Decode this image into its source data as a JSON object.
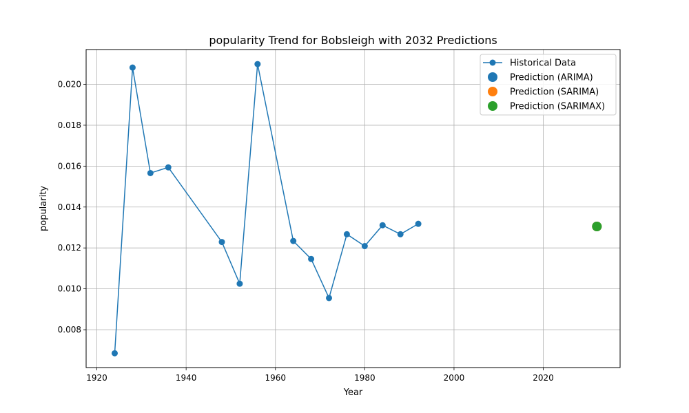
{
  "chart_data": {
    "type": "line",
    "title": "popularity Trend for Bobsleigh with 2032 Predictions",
    "xlabel": "Year",
    "ylabel": "popularity",
    "xlim": [
      1917.6,
      2037.2
    ],
    "ylim": [
      0.00615,
      0.0217
    ],
    "x_ticks": [
      1920,
      1940,
      1960,
      1980,
      2000,
      2020
    ],
    "y_ticks": [
      0.008,
      0.01,
      0.012,
      0.014,
      0.016,
      0.018,
      0.02
    ],
    "x_tick_labels": [
      "1920",
      "1940",
      "1960",
      "1980",
      "2000",
      "2020"
    ],
    "y_tick_labels": [
      "0.008",
      "0.010",
      "0.012",
      "0.014",
      "0.016",
      "0.018",
      "0.020"
    ],
    "grid": true,
    "legend_position": "top-right",
    "series": [
      {
        "name": "Historical Data",
        "kind": "line-marker",
        "color": "#1f77b4",
        "x": [
          1924,
          1928,
          1932,
          1936,
          1948,
          1952,
          1956,
          1964,
          1968,
          1972,
          1976,
          1980,
          1984,
          1988,
          1992
        ],
        "y": [
          0.00685,
          0.02082,
          0.01566,
          0.01594,
          0.01229,
          0.01025,
          0.02099,
          0.01234,
          0.01146,
          0.00955,
          0.01267,
          0.01209,
          0.01311,
          0.01267,
          0.01318
        ]
      },
      {
        "name": "Prediction (ARIMA)",
        "kind": "point",
        "color": "#1f77b4",
        "x": [
          2032
        ],
        "y": [
          0.01305
        ]
      },
      {
        "name": "Prediction (SARIMA)",
        "kind": "point",
        "color": "#ff7f0e",
        "x": [
          2032
        ],
        "y": [
          0.01305
        ]
      },
      {
        "name": "Prediction (SARIMAX)",
        "kind": "point",
        "color": "#2ca02c",
        "x": [
          2032
        ],
        "y": [
          0.01305
        ]
      }
    ]
  }
}
